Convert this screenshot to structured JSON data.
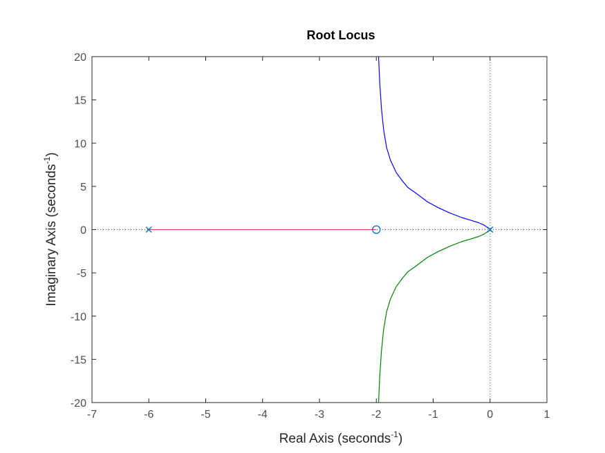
{
  "chart_data": {
    "type": "line",
    "title": "Root Locus",
    "xlabel": "Real Axis (seconds",
    "ylabel": "Imaginary Axis (seconds",
    "label_exponent": "-1",
    "xlim": [
      -7,
      1
    ],
    "ylim": [
      -20,
      20
    ],
    "xticks": [
      -7,
      -6,
      -5,
      -4,
      -3,
      -2,
      -1,
      0,
      1
    ],
    "yticks": [
      -20,
      -15,
      -10,
      -5,
      0,
      5,
      10,
      15,
      20
    ],
    "grid": false,
    "poles": [
      [
        -6,
        0
      ],
      [
        0,
        0
      ],
      [
        0,
        0
      ]
    ],
    "zeros": [
      [
        -2,
        0
      ]
    ],
    "series": [
      {
        "color": "#0000ff",
        "points": [
          [
            0,
            0
          ],
          [
            -0.1,
            0.5
          ],
          [
            -0.2,
            0.8
          ],
          [
            -0.35,
            1.1
          ],
          [
            -0.5,
            1.4
          ],
          [
            -0.7,
            1.9
          ],
          [
            -0.9,
            2.5
          ],
          [
            -1.1,
            3.2
          ],
          [
            -1.3,
            4.2
          ],
          [
            -1.45,
            4.9
          ],
          [
            -1.55,
            5.7
          ],
          [
            -1.65,
            6.6
          ],
          [
            -1.75,
            8.0
          ],
          [
            -1.82,
            9.5
          ],
          [
            -1.87,
            11.5
          ],
          [
            -1.91,
            14.0
          ],
          [
            -1.94,
            17.0
          ],
          [
            -1.96,
            20.0
          ]
        ]
      },
      {
        "color": "#008000",
        "points": [
          [
            0,
            0
          ],
          [
            -0.1,
            -0.5
          ],
          [
            -0.2,
            -0.8
          ],
          [
            -0.35,
            -1.1
          ],
          [
            -0.5,
            -1.4
          ],
          [
            -0.7,
            -1.9
          ],
          [
            -0.9,
            -2.5
          ],
          [
            -1.1,
            -3.2
          ],
          [
            -1.3,
            -4.2
          ],
          [
            -1.45,
            -4.9
          ],
          [
            -1.55,
            -5.7
          ],
          [
            -1.65,
            -6.6
          ],
          [
            -1.75,
            -8.0
          ],
          [
            -1.82,
            -9.5
          ],
          [
            -1.87,
            -11.5
          ],
          [
            -1.91,
            -14.0
          ],
          [
            -1.94,
            -17.0
          ],
          [
            -1.96,
            -20.0
          ]
        ]
      },
      {
        "color": "#e0485a",
        "points": [
          [
            -6,
            0
          ],
          [
            -2,
            0
          ]
        ]
      }
    ],
    "reference_lines": {
      "horizontal_at": 0,
      "vertical_at": 0,
      "style": "dotted"
    }
  }
}
